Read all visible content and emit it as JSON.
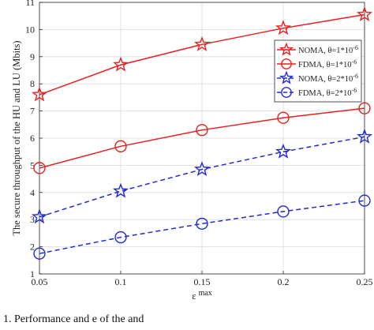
{
  "chart_data": {
    "type": "line",
    "xlabel": "ε",
    "xlabel_sup": "max",
    "ylabel": "The secure throughput of the HU and LU (Mbits)",
    "x": [
      0.05,
      0.1,
      0.15,
      0.2,
      0.25
    ],
    "xlim": [
      0.05,
      0.25
    ],
    "ylim": [
      1,
      11
    ],
    "x_ticks": [
      "0.05",
      "0.1",
      "0.15",
      "0.2",
      "0.25"
    ],
    "y_ticks": [
      "1",
      "2",
      "3",
      "4",
      "5",
      "6",
      "7",
      "8",
      "9",
      "10",
      "11"
    ],
    "grid": true,
    "legend_position": "right",
    "series": [
      {
        "name": "NOMA, θ=1*10",
        "name_sup": "-6",
        "values": [
          7.6,
          8.7,
          9.45,
          10.05,
          10.55
        ],
        "color": "#e8201e",
        "marker": "star",
        "line": "solid"
      },
      {
        "name": "FDMA, θ=1*10",
        "name_sup": "-6",
        "values": [
          4.9,
          5.7,
          6.3,
          6.75,
          7.1
        ],
        "color": "#e8201e",
        "marker": "circle",
        "line": "solid"
      },
      {
        "name": "NOMA, θ=2*10",
        "name_sup": "-6",
        "values": [
          3.1,
          4.05,
          4.85,
          5.5,
          6.05
        ],
        "color": "#1f2ad6",
        "marker": "star",
        "line": "dashed"
      },
      {
        "name": "FDMA, θ=2*10",
        "name_sup": "-6",
        "values": [
          1.75,
          2.35,
          2.85,
          3.3,
          3.7
        ],
        "color": "#1f2ad6",
        "marker": "circle",
        "line": "dashed"
      }
    ]
  },
  "caption": {
    "text": "1.  Performance and e        of the          and      "
  }
}
